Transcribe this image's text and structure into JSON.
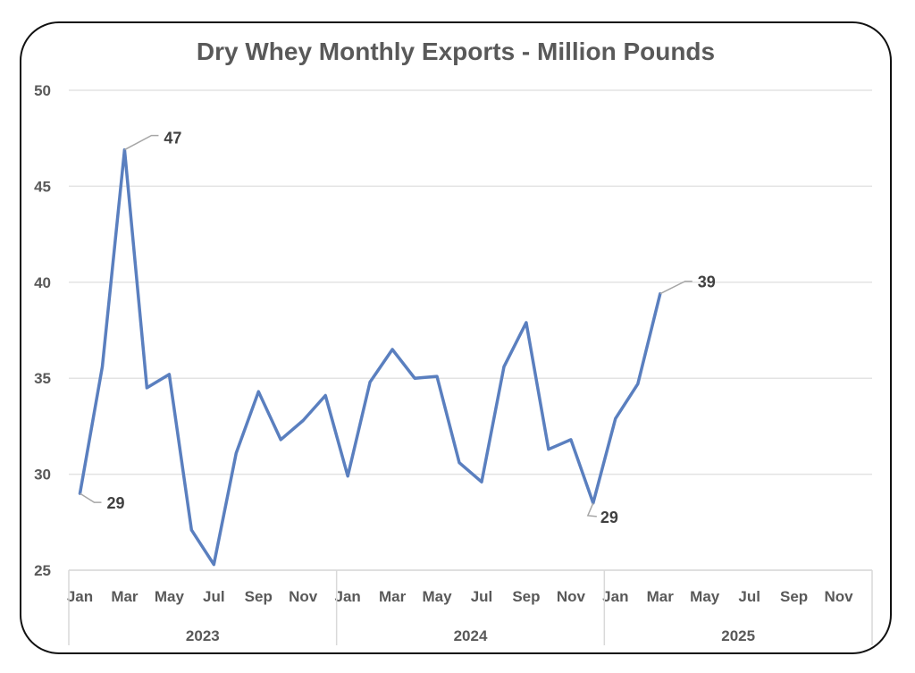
{
  "chart_data": {
    "type": "line",
    "title": "Dry Whey Monthly Exports - Million Pounds",
    "xlabel": "",
    "ylabel": "",
    "ylim": [
      25,
      50
    ],
    "yticks": [
      25,
      30,
      35,
      40,
      45,
      50
    ],
    "grid": true,
    "legend": "none",
    "x_month_labels": [
      "Jan",
      "Mar",
      "May",
      "Jul",
      "Sep",
      "Nov",
      "Jan",
      "Mar",
      "May",
      "Jul",
      "Sep",
      "Nov",
      "Jan",
      "Mar",
      "May",
      "Jul",
      "Sep",
      "Nov"
    ],
    "x_year_groups": [
      "2023",
      "2024",
      "2025"
    ],
    "series": [
      {
        "color": "#5a7fbf",
        "x": [
          "2023-01",
          "2023-02",
          "2023-03",
          "2023-04",
          "2023-05",
          "2023-06",
          "2023-07",
          "2023-08",
          "2023-09",
          "2023-10",
          "2023-11",
          "2023-12",
          "2024-01",
          "2024-02",
          "2024-03",
          "2024-04",
          "2024-05",
          "2024-06",
          "2024-07",
          "2024-08",
          "2024-09",
          "2024-10",
          "2024-11",
          "2024-12",
          "2025-01",
          "2025-02",
          "2025-03"
        ],
        "values": [
          29.0,
          35.6,
          46.9,
          34.5,
          35.2,
          27.1,
          25.3,
          31.1,
          34.3,
          31.8,
          32.8,
          34.1,
          29.9,
          34.8,
          36.5,
          35.0,
          35.1,
          30.6,
          29.6,
          35.6,
          37.9,
          31.3,
          31.8,
          28.5,
          32.9,
          34.7,
          39.4
        ]
      }
    ],
    "annotations": [
      {
        "label": "29",
        "x": "2023-01",
        "y": 29.0
      },
      {
        "label": "47",
        "x": "2023-03",
        "y": 46.9
      },
      {
        "label": "29",
        "x": "2024-12",
        "y": 28.5
      },
      {
        "label": "39",
        "x": "2025-03",
        "y": 39.4
      }
    ],
    "colors": {
      "line": "#5a7fbf",
      "grid": "#e3e3e3",
      "text": "#595959",
      "leader": "#a6a6a6"
    }
  }
}
